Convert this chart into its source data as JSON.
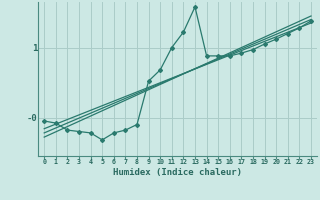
{
  "xlabel": "Humidex (Indice chaleur)",
  "bg_color": "#cce8e4",
  "grid_color": "#aaccc8",
  "line_color": "#2a7a6e",
  "spine_color": "#4a8a80",
  "tick_label_color": "#2a6a60",
  "x_ticks": [
    0,
    1,
    2,
    3,
    4,
    5,
    6,
    7,
    8,
    9,
    10,
    11,
    12,
    13,
    14,
    15,
    16,
    17,
    18,
    19,
    20,
    21,
    22,
    23
  ],
  "ylim": [
    -0.55,
    1.65
  ],
  "xlim": [
    -0.5,
    23.5
  ],
  "main_line_x": [
    0,
    1,
    2,
    3,
    4,
    5,
    6,
    7,
    8,
    9,
    10,
    11,
    12,
    13,
    14,
    15,
    16,
    17,
    18,
    19,
    20,
    21,
    22,
    23
  ],
  "main_line_y": [
    -0.05,
    -0.08,
    -0.18,
    -0.2,
    -0.22,
    -0.32,
    -0.22,
    -0.18,
    -0.1,
    0.52,
    0.68,
    1.0,
    1.22,
    1.58,
    0.88,
    0.88,
    0.88,
    0.92,
    0.97,
    1.05,
    1.12,
    1.2,
    1.28,
    1.38
  ],
  "reg_line_x": [
    0,
    23
  ],
  "reg_line1_y": [
    -0.28,
    1.45
  ],
  "reg_line2_y": [
    -0.22,
    1.4
  ],
  "reg_line3_y": [
    -0.16,
    1.35
  ],
  "y_ticks": [
    0.0,
    1.0
  ],
  "y_tick_labels": [
    "-0",
    "1"
  ]
}
